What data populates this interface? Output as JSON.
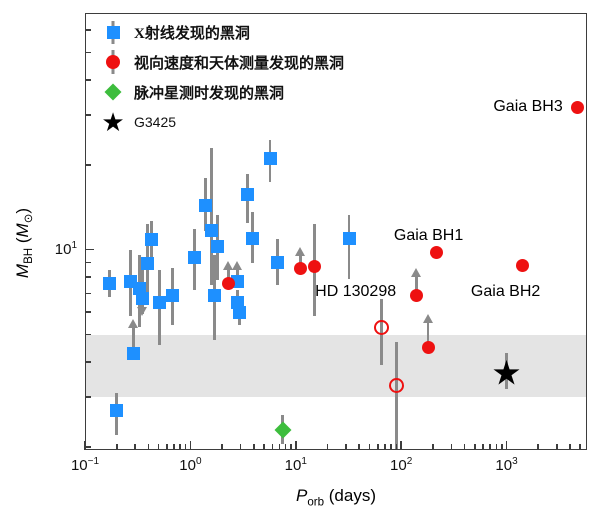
{
  "figure": {
    "background": "#ffffff",
    "frame_color": "#3d3d3d",
    "errorbar_color": "#8a8a8a",
    "band_color": "#e4e4e4"
  },
  "legend": {
    "items": [
      {
        "label": "X射线发现的黑洞",
        "marker": "square",
        "color": "#1E90FF"
      },
      {
        "label": "视向速度和天体测量发现的黑洞",
        "marker": "circle",
        "color": "#EE1111"
      },
      {
        "label": "脉冲星测时发现的黑洞",
        "marker": "diamond",
        "color": "#3DBD3D"
      },
      {
        "label": "G3425",
        "marker": "star",
        "color": "#000000"
      }
    ]
  },
  "chart_data": {
    "type": "scatter",
    "xscale": "log",
    "yscale": "log",
    "xlim": [
      0.1,
      5800
    ],
    "ylim": [
      1.95,
      69
    ],
    "xlabel": {
      "var": "P",
      "sub": "orb",
      "rest": " (days)"
    },
    "ylabel": {
      "var": "M",
      "sub": "BH",
      "rest_pre": " (",
      "unit_var": "M",
      "unit_sub": "⊙",
      "rest_post": ")"
    },
    "shaded_band": {
      "from_msun": 3,
      "to_msun": 5
    },
    "x_ticks": {
      "major": [
        {
          "value": 0.1,
          "base": "10",
          "exp": "−1"
        },
        {
          "value": 1,
          "base": "10",
          "exp": "0"
        },
        {
          "value": 10,
          "base": "10",
          "exp": "1"
        },
        {
          "value": 100,
          "base": "10",
          "exp": "2"
        },
        {
          "value": 1000,
          "base": "10",
          "exp": "3"
        }
      ],
      "minor": [
        0.2,
        0.3,
        0.4,
        0.5,
        0.6,
        0.7,
        0.8,
        0.9,
        2,
        3,
        4,
        5,
        6,
        7,
        8,
        9,
        20,
        30,
        40,
        50,
        60,
        70,
        80,
        90,
        200,
        300,
        400,
        500,
        600,
        700,
        800,
        900,
        2000,
        3000,
        4000,
        5000
      ]
    },
    "y_ticks": {
      "major": [
        {
          "value": 10,
          "base": "10",
          "exp": "1"
        }
      ],
      "minor": [
        2,
        3,
        4,
        5,
        6,
        7,
        8,
        9,
        20,
        30,
        40,
        50,
        60
      ]
    },
    "series": [
      {
        "name": "X射线发现的黑洞",
        "marker": "square",
        "color": "#1E90FF",
        "points": [
          {
            "p": 0.17,
            "m": 7.6,
            "err": [
              6.8,
              8.5
            ]
          },
          {
            "p": 0.2,
            "m": 2.7,
            "err": [
              2.2,
              3.1
            ]
          },
          {
            "p": 0.27,
            "m": 7.7,
            "err": [
              5.8,
              10.0
            ]
          },
          {
            "p": 0.29,
            "m": 4.3,
            "arrow": "up",
            "arrow_to": 5.7
          },
          {
            "p": 0.33,
            "m": 7.3,
            "err": [
              5.3,
              9.6
            ]
          },
          {
            "p": 0.35,
            "m": 6.7,
            "err": [
              5.9,
              9.0
            ],
            "arrow": "down",
            "arrow_to": 5.8
          },
          {
            "p": 0.39,
            "m": 8.9,
            "err": [
              6.4,
              12.3
            ]
          },
          {
            "p": 0.43,
            "m": 10.9,
            "err": [
              9.0,
              12.6
            ]
          },
          {
            "p": 0.51,
            "m": 6.5,
            "err": [
              4.6,
              8.5
            ]
          },
          {
            "p": 0.68,
            "m": 6.9,
            "err": [
              5.4,
              8.6
            ]
          },
          {
            "p": 1.1,
            "m": 9.4,
            "err": [
              7.2,
              11.8
            ]
          },
          {
            "p": 1.4,
            "m": 14.3,
            "err": [
              11.6,
              18.0
            ]
          },
          {
            "p": 1.6,
            "m": 11.7,
            "err": [
              7.5,
              23.0
            ]
          },
          {
            "p": 1.8,
            "m": 10.3,
            "err": [
              7.8,
              13.3
            ]
          },
          {
            "p": 1.7,
            "m": 6.9,
            "err": [
              4.8,
              9.6
            ]
          },
          {
            "p": 2.8,
            "m": 7.7,
            "arrow": "up",
            "arrow_to": 9.1
          },
          {
            "p": 2.8,
            "m": 6.5,
            "err": [
              5.9,
              7.2
            ]
          },
          {
            "p": 2.9,
            "m": 6.0,
            "err": [
              5.4,
              6.6
            ]
          },
          {
            "p": 3.5,
            "m": 15.7,
            "err": [
              12.4,
              18.5
            ]
          },
          {
            "p": 3.9,
            "m": 11.0,
            "err": [
              9.0,
              13.6
            ]
          },
          {
            "p": 5.7,
            "m": 21.0,
            "err": [
              17.4,
              24.5
            ]
          },
          {
            "p": 6.7,
            "m": 9.0,
            "err": [
              7.5,
              10.9
            ]
          },
          {
            "p": 32,
            "m": 11.0,
            "err": [
              7.9,
              13.3
            ]
          }
        ]
      },
      {
        "name": "视向速度和天体测量发现的黑洞",
        "marker": "circle",
        "color": "#EE1111",
        "points": [
          {
            "p": 2.3,
            "m": 7.6,
            "arrow": "up",
            "arrow_to": 9.1
          },
          {
            "p": 11,
            "m": 8.6,
            "arrow": "up",
            "arrow_to": 10.2
          },
          {
            "p": 15,
            "m": 8.7,
            "err": [
              5.8,
              12.3
            ]
          },
          {
            "p": 140,
            "m": 6.9,
            "arrow": "up",
            "arrow_to": 8.6
          },
          {
            "p": 180,
            "m": 4.5,
            "arrow": "up",
            "arrow_to": 5.9
          },
          {
            "p": 217,
            "m": 9.8
          },
          {
            "p": 1420,
            "m": 8.8
          },
          {
            "p": 4700,
            "m": 32
          }
        ]
      },
      {
        "name": "open-circle-candidates",
        "marker": "open-circle",
        "color": "#EE1111",
        "points": [
          {
            "p": 65,
            "m": 5.3,
            "err": [
              3.9,
              6.7
            ]
          },
          {
            "p": 90,
            "m": 3.3,
            "err": [
              1.9,
              4.7
            ]
          }
        ]
      },
      {
        "name": "脉冲星测时发现的黑洞",
        "marker": "diamond",
        "color": "#3DBD3D",
        "points": [
          {
            "p": 7.5,
            "m": 2.3,
            "err": [
              2.05,
              2.6
            ]
          }
        ]
      },
      {
        "name": "G3425",
        "marker": "star",
        "color": "#000000",
        "points": [
          {
            "p": 1000,
            "m": 3.6,
            "err": [
              3.2,
              4.3
            ]
          }
        ]
      }
    ],
    "annotations": [
      {
        "text": "Gaia BH3",
        "p": 1600,
        "m": 32
      },
      {
        "text": "Gaia BH1",
        "p": 182,
        "m": 11.2
      },
      {
        "text": "HD 130298",
        "p": 37,
        "m": 7.1
      },
      {
        "text": "Gaia BH2",
        "p": 980,
        "m": 7.1
      }
    ]
  }
}
